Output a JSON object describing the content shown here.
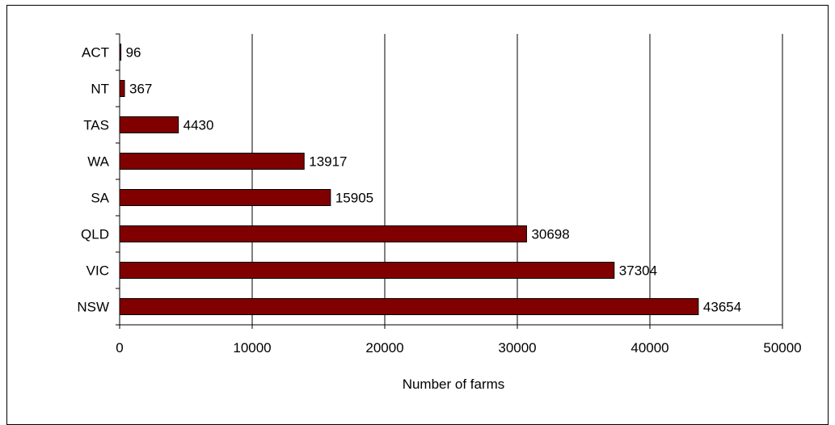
{
  "chart_data": {
    "type": "bar",
    "orientation": "horizontal",
    "categories": [
      "ACT",
      "NT",
      "TAS",
      "WA",
      "SA",
      "QLD",
      "VIC",
      "NSW"
    ],
    "values": [
      96,
      367,
      4430,
      13917,
      15905,
      30698,
      37304,
      43654
    ],
    "data_labels": [
      "96",
      "367",
      "4430",
      "13917",
      "15905",
      "30698",
      "37304",
      "43654"
    ],
    "xlabel": "Number of farms",
    "ylabel": "",
    "xlim": [
      0,
      50000
    ],
    "x_ticks": [
      0,
      10000,
      20000,
      30000,
      40000,
      50000
    ],
    "x_tick_labels": [
      "0",
      "10000",
      "20000",
      "30000",
      "40000",
      "50000"
    ],
    "grid": "vertical",
    "legend": "none",
    "bar_color": "#800000"
  }
}
